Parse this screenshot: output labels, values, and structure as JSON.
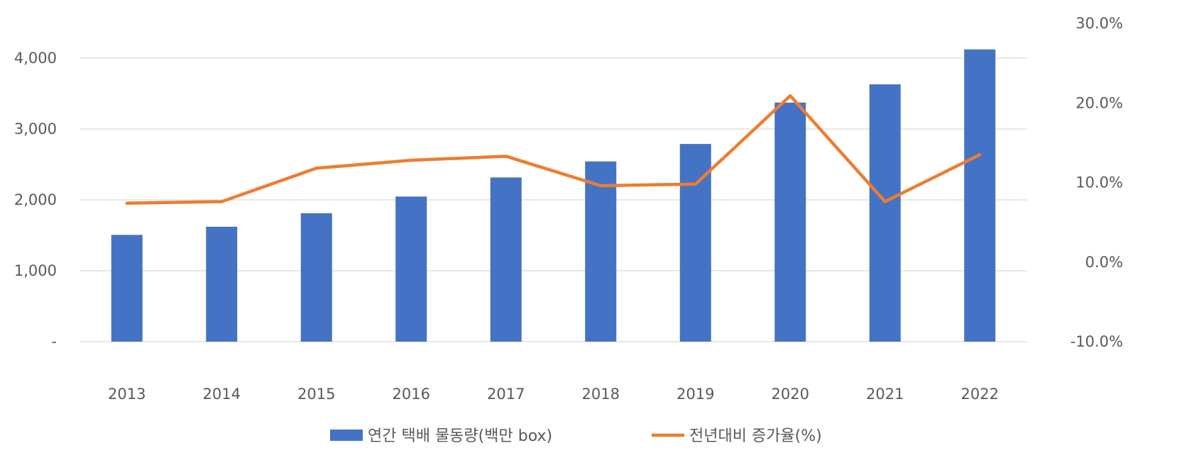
{
  "chart_data": {
    "type": "bar",
    "categories": [
      "2013",
      "2014",
      "2015",
      "2016",
      "2017",
      "2018",
      "2019",
      "2020",
      "2021",
      "2022"
    ],
    "series": [
      {
        "name": "연간 택배 물동량(백만 box)",
        "type": "bar",
        "axis": "left",
        "color": "#4472C4",
        "values": [
          1506,
          1621,
          1812,
          2047,
          2316,
          2542,
          2789,
          3373,
          3630,
          4123
        ]
      },
      {
        "name": "전년대비 증가율(%)",
        "type": "line",
        "axis": "right",
        "color": "#ED7D31",
        "values": [
          7.4,
          7.6,
          11.8,
          12.8,
          13.3,
          9.6,
          9.8,
          20.9,
          7.6,
          13.5
        ]
      }
    ],
    "y_left": {
      "ylim": [
        0,
        4000
      ],
      "ticks": [
        0,
        1000,
        2000,
        3000,
        4000
      ],
      "tick_labels": [
        "-",
        "1,000",
        "2,000",
        "3,000",
        "4,000"
      ]
    },
    "y_right": {
      "ylim": [
        -10,
        30
      ],
      "ticks": [
        -10,
        0,
        10,
        20,
        30
      ],
      "tick_labels": [
        "-10.0%",
        "0.0%",
        "10.0%",
        "20.0%",
        "30.0%"
      ]
    },
    "grid": true,
    "legend_position": "bottom",
    "title": "",
    "xlabel": "",
    "ylabel": ""
  }
}
